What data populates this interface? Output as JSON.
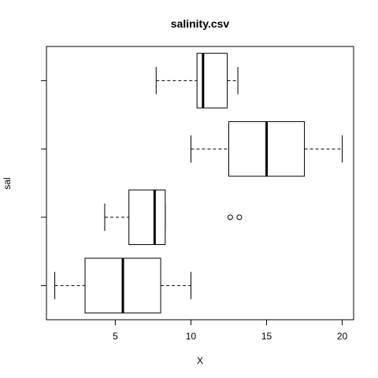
{
  "chart_data": {
    "type": "boxplot",
    "orientation": "horizontal",
    "title": "salinity.csv",
    "xlabel": "X",
    "ylabel": "sal",
    "xlim": [
      0.45,
      20.75
    ],
    "xticks": [
      5,
      10,
      15,
      20
    ],
    "grid": false,
    "legend": "none",
    "boxes": [
      {
        "whisker_low": 1.0,
        "q1": 3.0,
        "median": 5.5,
        "q3": 8.0,
        "whisker_high": 10.0,
        "outliers": []
      },
      {
        "whisker_low": 4.3,
        "q1": 5.9,
        "median": 7.6,
        "q3": 8.3,
        "whisker_high": 8.3,
        "outliers": [
          12.6,
          13.2
        ]
      },
      {
        "whisker_low": 10.0,
        "q1": 12.5,
        "median": 15.0,
        "q3": 17.5,
        "whisker_high": 20.0,
        "outliers": []
      },
      {
        "whisker_low": 7.7,
        "q1": 10.4,
        "median": 10.8,
        "q3": 12.4,
        "whisker_high": 13.1,
        "outliers": []
      }
    ]
  }
}
